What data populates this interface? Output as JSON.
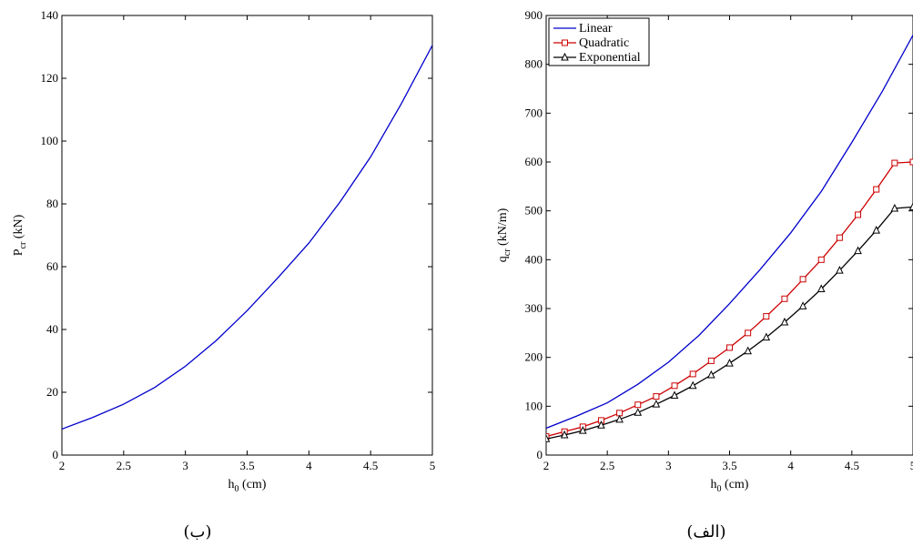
{
  "chart_data": [
    {
      "type": "line",
      "panel_label": "(ب)",
      "xlabel": "h",
      "xlabel_sub": "0",
      "xlabel_unit": " (cm)",
      "ylabel": "P",
      "ylabel_sub": "cr",
      "ylabel_unit": " (kN)",
      "xlim": [
        2,
        5
      ],
      "ylim": [
        0,
        140
      ],
      "xticks": [
        2,
        2.5,
        3,
        3.5,
        4,
        4.5,
        5
      ],
      "yticks": [
        0,
        20,
        40,
        60,
        80,
        100,
        120,
        140
      ],
      "grid": false,
      "series": [
        {
          "color": "#0000cc",
          "marker": "none",
          "x": [
            2,
            2.25,
            2.5,
            2.75,
            3,
            3.25,
            3.5,
            3.75,
            4,
            4.25,
            4.5,
            4.75,
            5
          ],
          "y": [
            8.3,
            12,
            16.2,
            21.5,
            28.3,
            36.5,
            46,
            56.5,
            67.5,
            80.5,
            95,
            112,
            130.5
          ]
        }
      ]
    },
    {
      "type": "line",
      "panel_label": "(الف)",
      "xlabel": "h",
      "xlabel_sub": "0",
      "xlabel_unit": " (cm)",
      "ylabel": "q",
      "ylabel_sub": "cr",
      "ylabel_unit": " (kN/m)",
      "xlim": [
        2,
        5
      ],
      "ylim": [
        0,
        900
      ],
      "xticks": [
        2,
        2.5,
        3,
        3.5,
        4,
        4.5,
        5
      ],
      "yticks": [
        0,
        100,
        200,
        300,
        400,
        500,
        600,
        700,
        800,
        900
      ],
      "grid": false,
      "legend": "top-left",
      "series": [
        {
          "name": "Linear",
          "color": "#0000cc",
          "marker": "none",
          "x": [
            2,
            2.25,
            2.5,
            2.75,
            3,
            3.25,
            3.5,
            3.75,
            4,
            4.25,
            4.5,
            4.75,
            5
          ],
          "y": [
            55,
            80,
            107,
            145,
            190,
            245,
            310,
            380,
            455,
            540,
            640,
            745,
            860
          ]
        },
        {
          "name": "Quadratic",
          "color": "#cc0000",
          "marker": "square",
          "x": [
            2,
            2.15,
            2.3,
            2.45,
            2.6,
            2.75,
            2.9,
            3.05,
            3.2,
            3.35,
            3.5,
            3.65,
            3.8,
            3.95,
            4.1,
            4.25,
            4.4,
            4.55,
            4.7,
            4.85,
            5
          ],
          "y": [
            38,
            48,
            58,
            71,
            86,
            103,
            120,
            142,
            166,
            193,
            220,
            250,
            284,
            320,
            360,
            400,
            445,
            492,
            544,
            598,
            600
          ]
        },
        {
          "name": "Exponential",
          "color": "#000000",
          "marker": "triangle",
          "x": [
            2,
            2.15,
            2.3,
            2.45,
            2.6,
            2.75,
            2.9,
            3.05,
            3.2,
            3.35,
            3.5,
            3.65,
            3.8,
            3.95,
            4.1,
            4.25,
            4.4,
            4.55,
            4.7,
            4.85,
            5
          ],
          "y": [
            33,
            41,
            50,
            61,
            73,
            87,
            104,
            122,
            142,
            164,
            188,
            213,
            241,
            272,
            305,
            340,
            378,
            418,
            460,
            505,
            508
          ]
        }
      ]
    }
  ]
}
